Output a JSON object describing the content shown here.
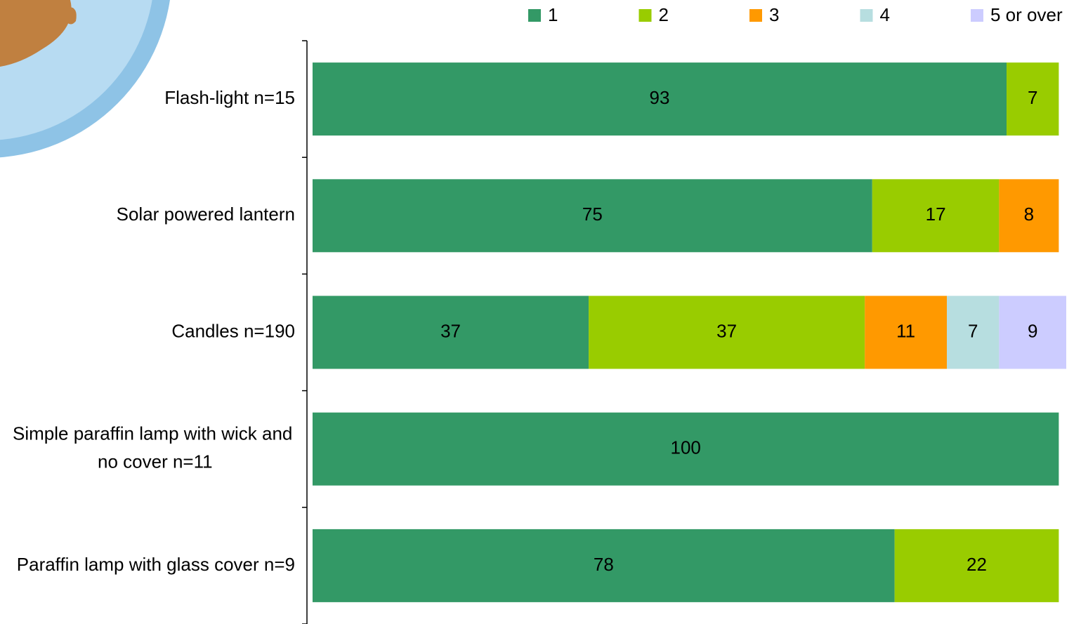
{
  "chart_data": {
    "type": "stacked-bar-horizontal",
    "categories": [
      "Flash-light n=15",
      "Solar powered lantern",
      "Candles n=190",
      "Simple paraffin lamp with wick and no cover n=11",
      "Paraffin lamp with glass cover n=9"
    ],
    "series": [
      {
        "name": "1",
        "color": "#339966",
        "values": [
          93,
          75,
          37,
          100,
          78
        ]
      },
      {
        "name": "2",
        "color": "#99cc00",
        "values": [
          7,
          17,
          37,
          null,
          22
        ]
      },
      {
        "name": "3",
        "color": "#ff9900",
        "values": [
          null,
          8,
          11,
          null,
          null
        ]
      },
      {
        "name": "4",
        "color": "#b7dee0",
        "values": [
          null,
          null,
          7,
          null,
          null
        ]
      },
      {
        "name": "5 or over",
        "color": "#ccccff",
        "values": [
          null,
          null,
          9,
          null,
          null
        ]
      }
    ],
    "legend": "top"
  }
}
